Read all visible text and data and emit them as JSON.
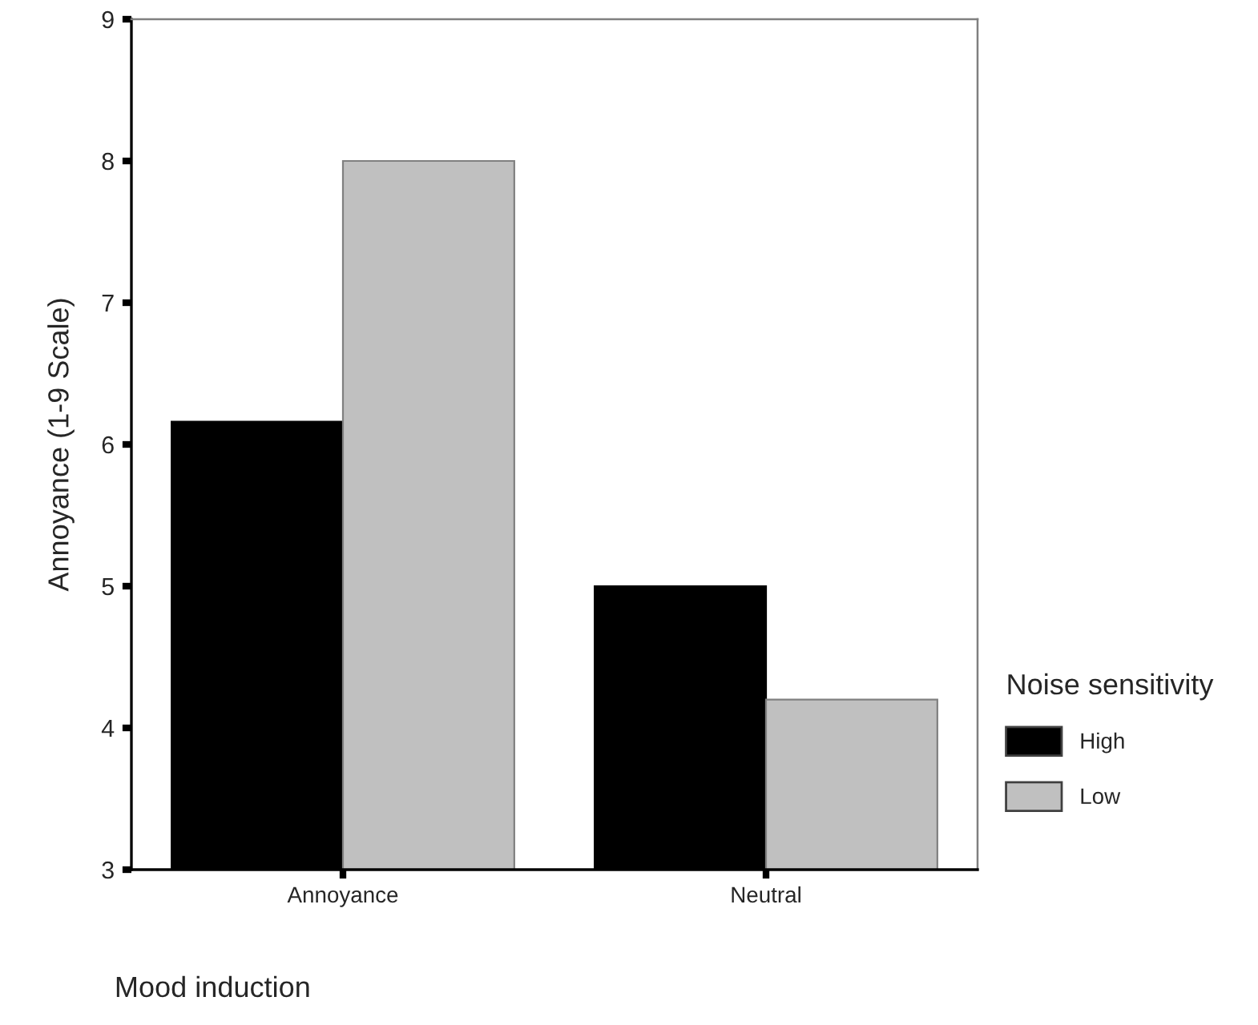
{
  "chart_data": {
    "type": "bar",
    "xlabel": "Mood induction",
    "ylabel": "Annoyance (1-9 Scale)",
    "legend_title": "Noise sensitivity",
    "categories": [
      "Annoyance",
      "Neutral"
    ],
    "series": [
      {
        "name": "High",
        "color": "#000000",
        "values": [
          6.16,
          5.0
        ]
      },
      {
        "name": "Low",
        "color": "#c0c0c0",
        "values": [
          8.0,
          4.2
        ]
      }
    ],
    "ylim": [
      3,
      9
    ],
    "yticks": [
      3,
      4,
      5,
      6,
      7,
      8,
      9
    ],
    "grid": false,
    "legend": "right"
  }
}
